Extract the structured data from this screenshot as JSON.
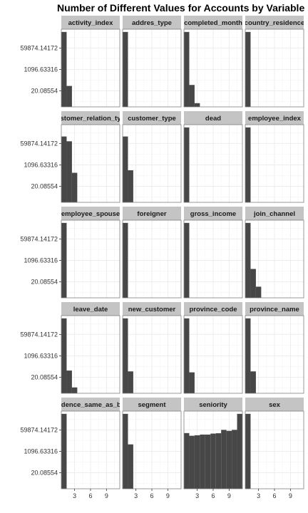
{
  "chart_data": {
    "type": "bar",
    "title": "Number of Different Values for Accounts by Variable",
    "facet_layout": {
      "columns": 4,
      "rows": 5
    },
    "xlabel": "",
    "ylabel": "",
    "x_range": [
      0.5,
      11.5
    ],
    "x_ticks": [
      3,
      6,
      9
    ],
    "x_tick_labels": [
      "3",
      "6",
      "9"
    ],
    "y_scale": "log",
    "y_range": [
      1,
      2000000
    ],
    "y_ticks": [
      20.08554,
      1096.63316,
      59874.14172
    ],
    "y_tick_labels": [
      "20.08554",
      "1096.63316",
      "59874.14172"
    ],
    "grid": true,
    "legend": "none",
    "colors": {
      "bar": "#474747",
      "strip": "#c4c4c4",
      "panel_border": "#7f7f7f",
      "grid": "#ebebeb"
    },
    "panels": [
      {
        "name": "activity_index",
        "bars": [
          {
            "x": 1,
            "y": 1200000
          },
          {
            "x": 2,
            "y": 50
          }
        ]
      },
      {
        "name": "addres_type",
        "bars": [
          {
            "x": 1,
            "y": 1200000
          }
        ]
      },
      {
        "name": "completed_month",
        "bars": [
          {
            "x": 1,
            "y": 1200000
          },
          {
            "x": 2,
            "y": 60
          },
          {
            "x": 3,
            "y": 2
          }
        ]
      },
      {
        "name": "country_residence",
        "bars": [
          {
            "x": 1,
            "y": 1200000
          }
        ]
      },
      {
        "name": "customer_relation_type",
        "bars": [
          {
            "x": 1,
            "y": 220000
          },
          {
            "x": 2,
            "y": 90000
          },
          {
            "x": 3,
            "y": 250
          }
        ]
      },
      {
        "name": "customer_type",
        "bars": [
          {
            "x": 1,
            "y": 220000
          },
          {
            "x": 2,
            "y": 400
          }
        ]
      },
      {
        "name": "dead",
        "bars": [
          {
            "x": 1,
            "y": 1200000
          }
        ]
      },
      {
        "name": "employee_index",
        "bars": [
          {
            "x": 1,
            "y": 1200000
          }
        ]
      },
      {
        "name": "employee_spouse",
        "bars": [
          {
            "x": 1,
            "y": 1200000
          }
        ]
      },
      {
        "name": "foreigner",
        "bars": [
          {
            "x": 1,
            "y": 1200000
          }
        ]
      },
      {
        "name": "gross_income",
        "bars": [
          {
            "x": 1,
            "y": 1200000
          }
        ]
      },
      {
        "name": "join_channel",
        "bars": [
          {
            "x": 1,
            "y": 1200000
          },
          {
            "x": 2,
            "y": 220
          },
          {
            "x": 3,
            "y": 8
          }
        ]
      },
      {
        "name": "leave_date",
        "bars": [
          {
            "x": 1,
            "y": 1200000
          },
          {
            "x": 2,
            "y": 70
          },
          {
            "x": 3,
            "y": 3
          }
        ]
      },
      {
        "name": "new_customer",
        "bars": [
          {
            "x": 1,
            "y": 1200000
          },
          {
            "x": 2,
            "y": 60
          }
        ]
      },
      {
        "name": "province_code",
        "bars": [
          {
            "x": 1,
            "y": 1200000
          },
          {
            "x": 2,
            "y": 50
          }
        ]
      },
      {
        "name": "province_name",
        "bars": [
          {
            "x": 1,
            "y": 1200000
          },
          {
            "x": 2,
            "y": 60
          }
        ]
      },
      {
        "name": "residence_same_as_birth",
        "bars": [
          {
            "x": 1,
            "y": 1200000
          }
        ]
      },
      {
        "name": "segment",
        "bars": [
          {
            "x": 1,
            "y": 1200000
          },
          {
            "x": 2,
            "y": 4000
          }
        ]
      },
      {
        "name": "seniority",
        "bars": [
          {
            "x": 1,
            "y": 33000
          },
          {
            "x": 2,
            "y": 20000
          },
          {
            "x": 3,
            "y": 22000
          },
          {
            "x": 4,
            "y": 25000
          },
          {
            "x": 5,
            "y": 25000
          },
          {
            "x": 6,
            "y": 30000
          },
          {
            "x": 7,
            "y": 32000
          },
          {
            "x": 8,
            "y": 60000
          },
          {
            "x": 9,
            "y": 50000
          },
          {
            "x": 10,
            "y": 60000
          },
          {
            "x": 11,
            "y": 1200000
          }
        ]
      },
      {
        "name": "sex",
        "bars": [
          {
            "x": 1,
            "y": 1200000
          }
        ]
      }
    ]
  }
}
